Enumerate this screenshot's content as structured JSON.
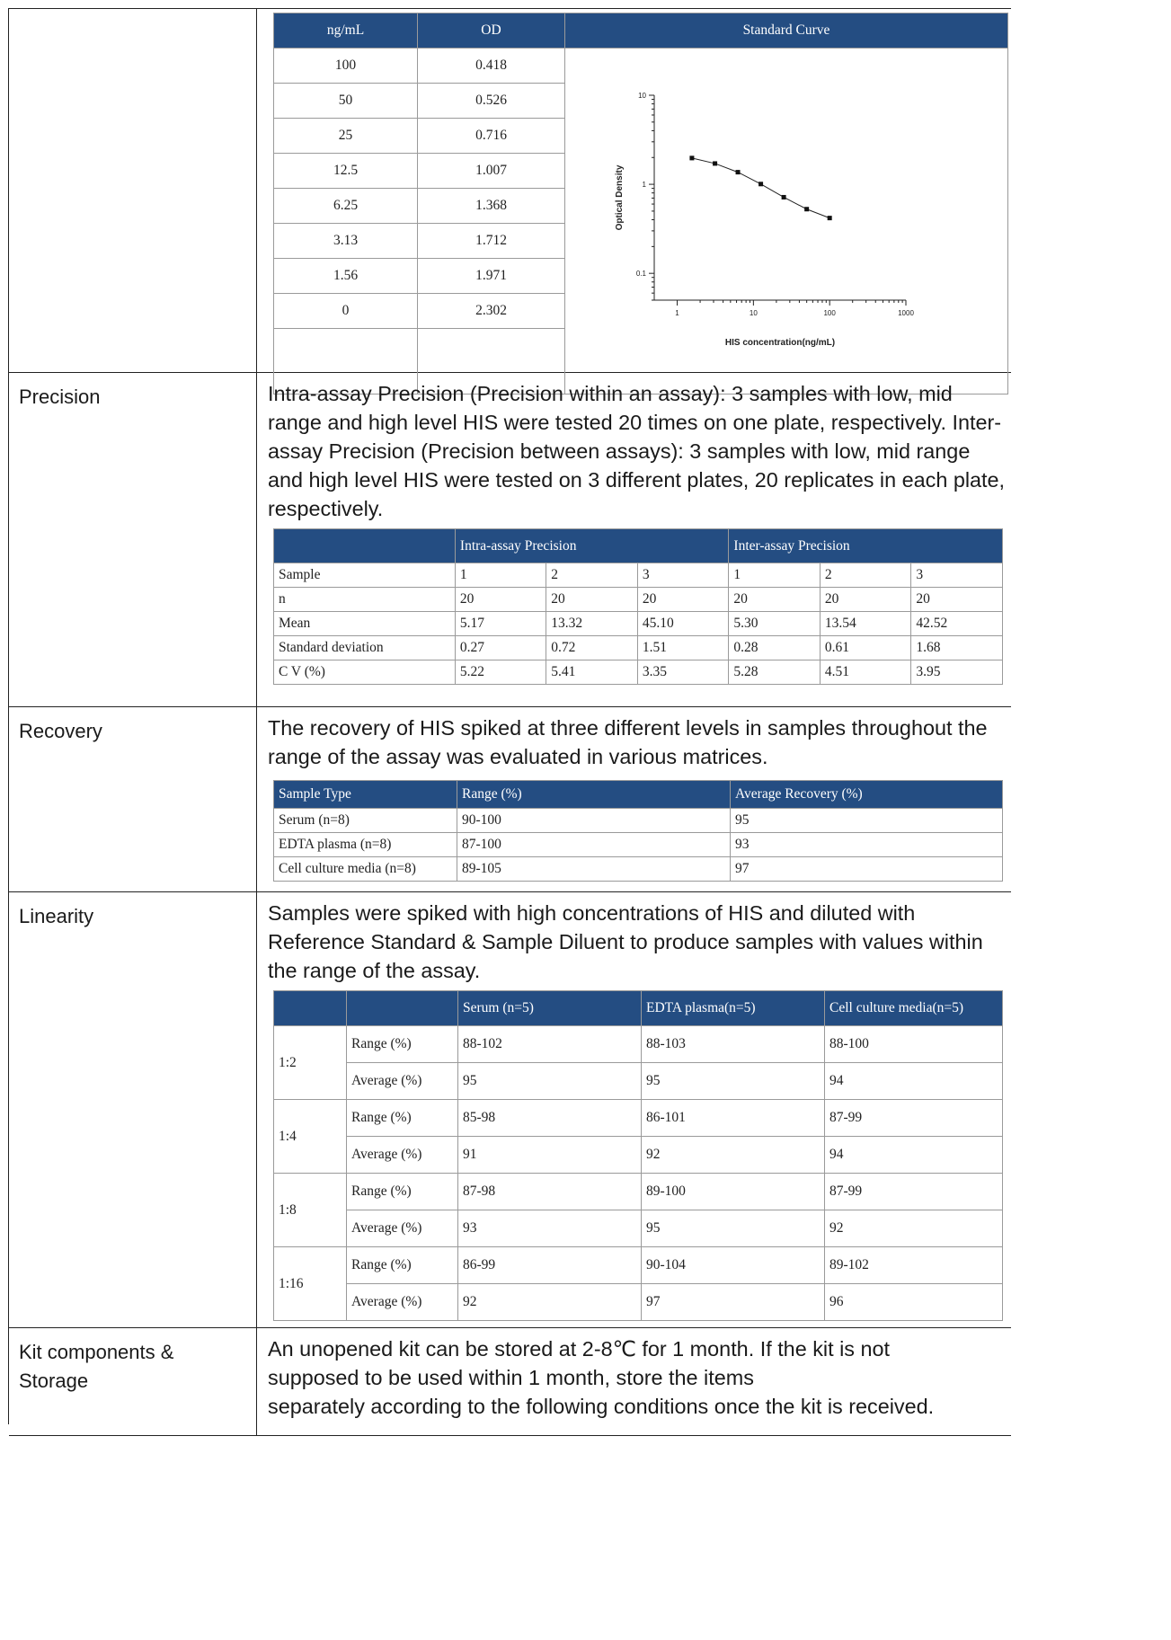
{
  "standard_curve": {
    "headers": [
      "ng/mL",
      "OD",
      "Standard Curve"
    ],
    "rows": [
      [
        "100",
        "0.418"
      ],
      [
        "50",
        "0.526"
      ],
      [
        "25",
        "0.716"
      ],
      [
        "12.5",
        "1.007"
      ],
      [
        "6.25",
        "1.368"
      ],
      [
        "3.13",
        "1.712"
      ],
      [
        "1.56",
        "1.971"
      ],
      [
        "0",
        "2.302"
      ]
    ]
  },
  "chart_data": {
    "type": "scatter",
    "title": "",
    "xlabel": "HIS concentration(ng/mL)",
    "ylabel": "Optical Density",
    "x_scale": "log",
    "y_scale": "log",
    "xlim": [
      0.5,
      1000
    ],
    "ylim": [
      0.05,
      10
    ],
    "x_ticks": [
      "1",
      "10",
      "100",
      "1000"
    ],
    "y_ticks": [
      "10",
      "1",
      "0.1"
    ],
    "x": [
      1.56,
      3.13,
      6.25,
      12.5,
      25,
      50,
      100
    ],
    "y": [
      1.971,
      1.712,
      1.368,
      1.007,
      0.716,
      0.526,
      0.418
    ],
    "grid": false,
    "line": "fitted curve"
  },
  "precision": {
    "label": "Precision",
    "text": "Intra-assay Precision (Precision within an assay): 3 samples with low, mid range and high level HIS were tested 20 times on one plate, respectively. Inter-assay Precision (Precision between assays): 3 samples with low, mid range and high level HIS were tested on 3 different plates, 20 replicates in each plate, respectively.",
    "group_headers": [
      "",
      "Intra-assay Precision",
      "Inter-assay Precision"
    ],
    "rows": [
      [
        "Sample",
        "1",
        "2",
        "3",
        "1",
        "2",
        "3"
      ],
      [
        "n",
        "20",
        "20",
        "20",
        "20",
        "20",
        "20"
      ],
      [
        "Mean",
        "5.17",
        "13.32",
        "45.10",
        "5.30",
        "13.54",
        "42.52"
      ],
      [
        "Standard deviation",
        "0.27",
        "0.72",
        "1.51",
        "0.28",
        "0.61",
        "1.68"
      ],
      [
        "C V (%)",
        "5.22",
        "5.41",
        "3.35",
        "5.28",
        "4.51",
        "3.95"
      ]
    ]
  },
  "recovery": {
    "label": "Recovery",
    "text": "The recovery of HIS spiked at three different levels in samples throughout the range of the assay was evaluated in various matrices.",
    "headers": [
      "Sample Type",
      "Range (%)",
      "Average Recovery (%)"
    ],
    "rows": [
      [
        "Serum (n=8)",
        "90-100",
        "95"
      ],
      [
        "EDTA plasma (n=8)",
        "87-100",
        "93"
      ],
      [
        "Cell culture media (n=8)",
        "89-105",
        "97"
      ]
    ]
  },
  "linearity": {
    "label": "Linearity",
    "text": "Samples were spiked with high concentrations of HIS and diluted with Reference Standard & Sample Diluent to produce samples with values within the range of the assay.",
    "headers": [
      "",
      "",
      "Serum (n=5)",
      "EDTA plasma(n=5)",
      "Cell culture media(n=5)"
    ],
    "groups": [
      {
        "dilution": "1:2",
        "rows": [
          [
            "Range (%)",
            "88-102",
            "88-103",
            "88-100"
          ],
          [
            "Average (%)",
            "95",
            "95",
            "94"
          ]
        ]
      },
      {
        "dilution": "1:4",
        "rows": [
          [
            "Range (%)",
            "85-98",
            "86-101",
            "87-99"
          ],
          [
            "Average (%)",
            "91",
            "92",
            "94"
          ]
        ]
      },
      {
        "dilution": "1:8",
        "rows": [
          [
            "Range (%)",
            "87-98",
            "89-100",
            "87-99"
          ],
          [
            "Average (%)",
            "93",
            "95",
            "92"
          ]
        ]
      },
      {
        "dilution": "1:16",
        "rows": [
          [
            "Range (%)",
            "86-99",
            "90-104",
            "89-102"
          ],
          [
            "Average (%)",
            "92",
            "97",
            "96"
          ]
        ]
      }
    ]
  },
  "storage": {
    "label_line1": "Kit components &",
    "label_line2": "Storage",
    "line1": "An unopened kit can be stored at 2-8℃ for 1 month. If the kit is not",
    "line2": "supposed to be used within 1 month, store the items",
    "line3": "separately according to the following conditions once the kit is received."
  }
}
